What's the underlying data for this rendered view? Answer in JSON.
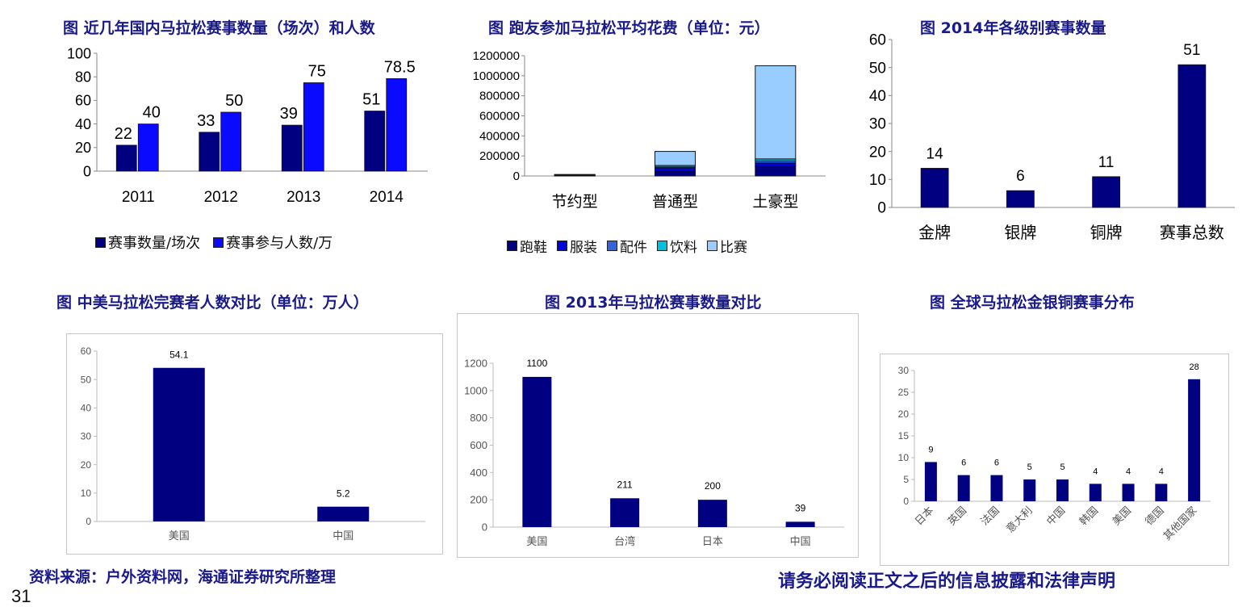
{
  "charts": {
    "c1": {
      "title": "图 近几年国内马拉松赛事数量（场次）和人数"
    },
    "c2": {
      "title": "图 跑友参加马拉松平均花费（单位：元）"
    },
    "c3": {
      "title": "图 2014年各级别赛事数量"
    },
    "c4": {
      "title": "图 中美马拉松完赛者人数对比（单位：万人）"
    },
    "c5": {
      "title": "图 2013年马拉松赛事数量对比"
    },
    "c6": {
      "title": "图 全球马拉松金银铜赛事分布"
    }
  },
  "footer": {
    "source": "资料来源：户外资料网，海通证券研究所整理",
    "disclaimer": "请务必阅读正文之后的信息披露和法律声明",
    "page": "31"
  },
  "colors": {
    "navy": "#000080",
    "blue": "#0a0aff",
    "title": "#1a1a8c"
  },
  "chart_data": [
    {
      "type": "bar",
      "title": "图 近几年国内马拉松赛事数量（场次）和人数",
      "categories": [
        "2011",
        "2012",
        "2013",
        "2014"
      ],
      "series": [
        {
          "name": "赛事数量/场次",
          "values": [
            22,
            33,
            39,
            51
          ],
          "color": "#000080"
        },
        {
          "name": "赛事参与人数/万",
          "values": [
            40,
            50,
            75,
            78.5
          ],
          "color": "#0a0aff"
        }
      ],
      "ylim": [
        0,
        100
      ],
      "yticks": [
        0,
        20,
        40,
        60,
        80,
        100
      ],
      "grid": false,
      "legend": "bottom"
    },
    {
      "type": "bar",
      "stacked": true,
      "title": "图 跑友参加马拉松平均花费（单位：元）",
      "categories": [
        "节约型",
        "普通型",
        "土豪型"
      ],
      "series": [
        {
          "name": "跑鞋",
          "values": [
            5000,
            50000,
            100000
          ],
          "color": "#000080"
        },
        {
          "name": "服装",
          "values": [
            3000,
            30000,
            30000
          ],
          "color": "#0000e0"
        },
        {
          "name": "配件",
          "values": [
            1000,
            10000,
            20000
          ],
          "color": "#3366dd"
        },
        {
          "name": "饮料",
          "values": [
            1000,
            15000,
            20000
          ],
          "color": "#00c0e0"
        },
        {
          "name": "比赛",
          "values": [
            5000,
            140000,
            930000
          ],
          "color": "#99ccff"
        }
      ],
      "ylim": [
        0,
        1200000
      ],
      "yticks": [
        0,
        200000,
        400000,
        600000,
        800000,
        1000000,
        1200000
      ],
      "grid": false,
      "legend": "bottom"
    },
    {
      "type": "bar",
      "title": "图 2014年各级别赛事数量",
      "categories": [
        "金牌",
        "银牌",
        "铜牌",
        "赛事总数"
      ],
      "values": [
        14,
        6,
        11,
        51
      ],
      "ylim": [
        0,
        60
      ],
      "yticks": [
        0,
        10,
        20,
        30,
        40,
        50,
        60
      ],
      "grid": false
    },
    {
      "type": "bar",
      "title": "图 中美马拉松完赛者人数对比（单位：万人）",
      "categories": [
        "美国",
        "中国"
      ],
      "values": [
        54.1,
        5.2
      ],
      "ylim": [
        0,
        60
      ],
      "yticks": [
        0,
        10,
        20,
        30,
        40,
        50,
        60
      ],
      "grid": false
    },
    {
      "type": "bar",
      "title": "图 2013年马拉松赛事数量对比",
      "categories": [
        "美国",
        "台湾",
        "日本",
        "中国"
      ],
      "values": [
        1100,
        211,
        200,
        39
      ],
      "ylim": [
        0,
        1200
      ],
      "yticks": [
        0,
        200,
        400,
        600,
        800,
        1000,
        1200
      ],
      "grid": false
    },
    {
      "type": "bar",
      "title": "图 全球马拉松金银铜赛事分布",
      "categories": [
        "日本",
        "英国",
        "法国",
        "意大利",
        "中国",
        "韩国",
        "美国",
        "德国",
        "其他国家"
      ],
      "values": [
        9,
        6,
        6,
        5,
        5,
        4,
        4,
        4,
        28
      ],
      "ylim": [
        0,
        30
      ],
      "yticks": [
        0,
        5,
        10,
        15,
        20,
        25,
        30
      ],
      "grid": false
    }
  ]
}
